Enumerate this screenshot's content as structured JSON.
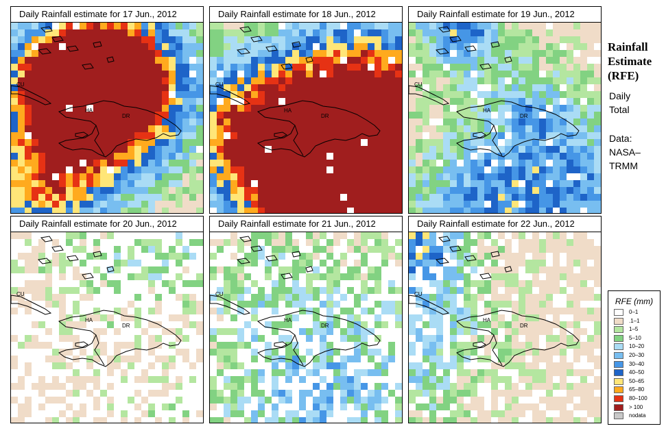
{
  "panels": [
    {
      "title": "Daily Rainfall estimate for  17 Jun., 2012",
      "seed": 17,
      "intensity": 0.95,
      "coverage": 0.98
    },
    {
      "title": "Daily Rainfall estimate for  18 Jun., 2012",
      "seed": 18,
      "intensity": 0.85,
      "coverage": 0.97
    },
    {
      "title": "Daily Rainfall estimate for  19 Jun., 2012",
      "seed": 19,
      "intensity": 0.45,
      "coverage": 0.93
    },
    {
      "title": "Daily Rainfall estimate for  20 Jun., 2012",
      "seed": 20,
      "intensity": 0.15,
      "coverage": 0.42
    },
    {
      "title": "Daily Rainfall estimate for  21 Jun., 2012",
      "seed": 21,
      "intensity": 0.25,
      "coverage": 0.62
    },
    {
      "title": "Daily Rainfall estimate for  22 Jun., 2012",
      "seed": 22,
      "intensity": 0.4,
      "coverage": 0.78
    }
  ],
  "country_labels": {
    "cu": "CU",
    "ha": "HA",
    "dr": "DR"
  },
  "side": {
    "title_line1": "Rainfall",
    "title_line2": "Estimate",
    "title_line3": "(RFE)",
    "period_line1": "Daily",
    "period_line2": "Total",
    "data_line1": "Data:",
    "data_line2": "NASA–",
    "data_line3": "TRMM"
  },
  "legend": {
    "title": "RFE (mm)",
    "classes": [
      {
        "label": "0–1",
        "color": "#ffffff"
      },
      {
        "label": ".1–1",
        "color": "#f0dcc8"
      },
      {
        "label": "1–5",
        "color": "#b4e6a0"
      },
      {
        "label": "5–10",
        "color": "#82d282"
      },
      {
        "label": "10–20",
        "color": "#aadcf5"
      },
      {
        "label": "20–30",
        "color": "#78bef0"
      },
      {
        "label": "30–40",
        "color": "#4696e6"
      },
      {
        "label": "40–50",
        "color": "#1e64c8"
      },
      {
        "label": "50–65",
        "color": "#ffe678"
      },
      {
        "label": "65–80",
        "color": "#ffaa1e"
      },
      {
        "label": "80–100",
        "color": "#e63214"
      },
      {
        "label": "> 100",
        "color": "#a01e1e"
      },
      {
        "label": "nodata",
        "color": "#c8c8c8"
      }
    ]
  }
}
